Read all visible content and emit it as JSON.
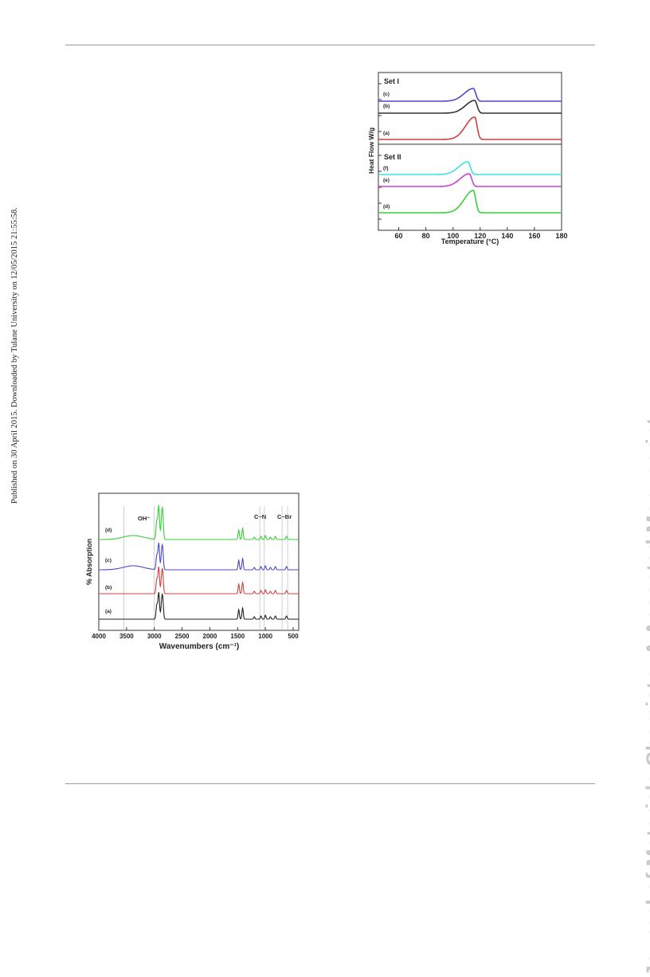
{
  "side_note": "Published on 30 April 2015. Downloaded by Tulane University on 12/05/2015 21:55:58.",
  "watermark": "Journal of Materials Chemistry A Accepted Manuscript",
  "dsc_figure": {
    "ylabel": "Heat Flow W/g",
    "xlabel": "Temperature (°C)",
    "set1_label": "Set I",
    "set2_label": "Set II",
    "chart_data": {
      "type": "line",
      "xlim": [
        45,
        180
      ],
      "xticks": [
        60,
        80,
        100,
        120,
        140,
        160,
        180
      ],
      "ylabel": "Heat Flow W/g",
      "xlabel": "Temperature (°C)",
      "grid": false,
      "panels": [
        {
          "label": "Set I",
          "series": [
            {
              "name": "(c)",
              "color": "#4a4acf",
              "baseline": 0,
              "peak_x": 115,
              "peak_height": 1.0
            },
            {
              "name": "(b)",
              "color": "#333333",
              "baseline": 0,
              "peak_x": 116,
              "peak_height": 1.0
            },
            {
              "name": "(a)",
              "color": "#d04040",
              "baseline": 0,
              "peak_x": 116,
              "peak_height": 1.0
            }
          ]
        },
        {
          "label": "Set II",
          "series": [
            {
              "name": "(f)",
              "color": "#3ee0e0",
              "baseline": 0,
              "peak_x": 111,
              "peak_height": 1.0
            },
            {
              "name": "(e)",
              "color": "#d040d0",
              "baseline": 0,
              "peak_x": 112,
              "peak_height": 1.0
            },
            {
              "name": "(d)",
              "color": "#38d038",
              "baseline": 0,
              "peak_x": 115,
              "peak_height": 1.0
            }
          ]
        }
      ]
    }
  },
  "ftir_figure": {
    "ylabel": "% Absorption",
    "xlabel": "Wavenumbers (cm⁻¹)",
    "annotations": [
      "OH⁻",
      "C−N",
      "C−Br"
    ],
    "chart_data": {
      "type": "line",
      "xlim": [
        4000,
        400
      ],
      "xticks": [
        4000,
        3500,
        3000,
        2500,
        2000,
        1500,
        1000,
        500
      ],
      "xlabel": "Wavenumbers (cm⁻¹)",
      "ylabel": "% Absorption",
      "reference_lines": [
        3550,
        3000,
        1100,
        1020,
        700,
        600
      ],
      "series": [
        {
          "name": "(d)",
          "color": "#38d038"
        },
        {
          "name": "(c)",
          "color": "#4a4acf"
        },
        {
          "name": "(b)",
          "color": "#d04040"
        },
        {
          "name": "(a)",
          "color": "#222222"
        }
      ]
    }
  }
}
